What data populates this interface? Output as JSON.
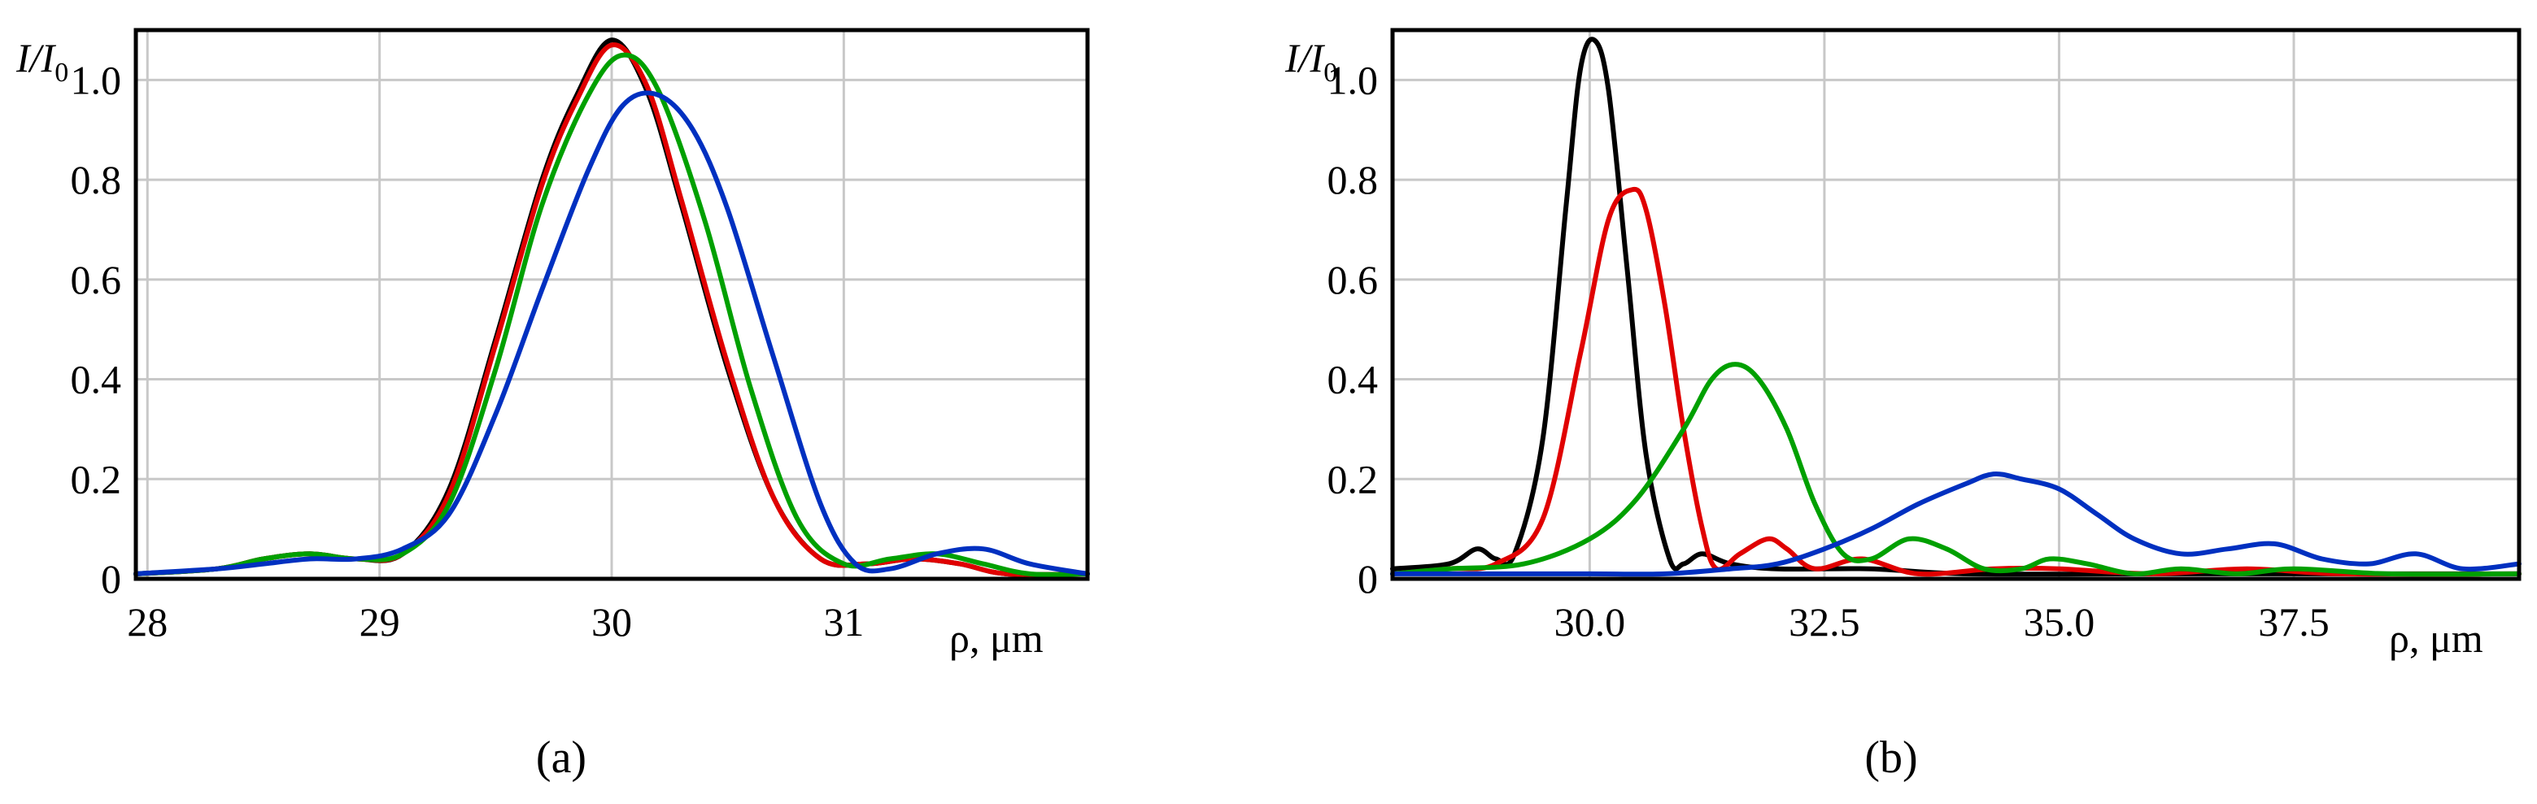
{
  "chart_data": [
    {
      "type": "line",
      "panel_label": "(a)",
      "ylabel_main": "I/I",
      "ylabel_sub": "0",
      "xlabel": "ρ, μm",
      "xlim": [
        27.95,
        32.05
      ],
      "ylim": [
        0,
        1.1
      ],
      "xticks": [
        28,
        29,
        30,
        31
      ],
      "xtick_labels": [
        "28",
        "29",
        "30",
        "31"
      ],
      "yticks": [
        0,
        0.2,
        0.4,
        0.6,
        0.8,
        1.0
      ],
      "ytick_labels": [
        "0",
        "0.2",
        "0.4",
        "0.6",
        "0.8",
        "1.0"
      ],
      "grid": true,
      "series": [
        {
          "name": "black",
          "color": "#000000",
          "x": [
            27.95,
            28.3,
            28.5,
            28.7,
            28.9,
            29.1,
            29.3,
            29.5,
            29.7,
            29.85,
            30.0,
            30.15,
            30.3,
            30.5,
            30.7,
            30.9,
            31.1,
            31.3,
            31.5,
            31.7,
            32.05
          ],
          "y": [
            0.01,
            0.02,
            0.04,
            0.05,
            0.04,
            0.05,
            0.18,
            0.48,
            0.8,
            0.97,
            1.08,
            0.98,
            0.75,
            0.42,
            0.16,
            0.04,
            0.03,
            0.04,
            0.03,
            0.01,
            0.01
          ]
        },
        {
          "name": "red",
          "color": "#e00000",
          "x": [
            27.95,
            28.3,
            28.5,
            28.7,
            28.9,
            29.1,
            29.3,
            29.5,
            29.7,
            29.85,
            30.0,
            30.15,
            30.3,
            30.5,
            30.7,
            30.9,
            31.1,
            31.3,
            31.5,
            31.7,
            32.05
          ],
          "y": [
            0.01,
            0.02,
            0.04,
            0.05,
            0.04,
            0.05,
            0.17,
            0.47,
            0.79,
            0.96,
            1.07,
            0.99,
            0.76,
            0.43,
            0.16,
            0.04,
            0.03,
            0.04,
            0.03,
            0.01,
            0.01
          ]
        },
        {
          "name": "green",
          "color": "#00a000",
          "x": [
            27.95,
            28.3,
            28.5,
            28.7,
            28.9,
            29.1,
            29.3,
            29.5,
            29.7,
            29.9,
            30.05,
            30.2,
            30.4,
            30.6,
            30.8,
            31.0,
            31.2,
            31.4,
            31.6,
            31.8,
            32.05
          ],
          "y": [
            0.01,
            0.02,
            0.04,
            0.05,
            0.04,
            0.05,
            0.15,
            0.42,
            0.75,
            0.97,
            1.05,
            0.98,
            0.72,
            0.38,
            0.12,
            0.03,
            0.04,
            0.05,
            0.03,
            0.01,
            0.01
          ]
        },
        {
          "name": "blue",
          "color": "#0030c0",
          "x": [
            27.95,
            28.3,
            28.5,
            28.7,
            28.9,
            29.1,
            29.3,
            29.5,
            29.7,
            29.9,
            30.05,
            30.2,
            30.35,
            30.5,
            30.7,
            30.9,
            31.05,
            31.2,
            31.4,
            31.6,
            31.8,
            32.05
          ],
          "y": [
            0.01,
            0.02,
            0.03,
            0.04,
            0.04,
            0.06,
            0.13,
            0.33,
            0.58,
            0.82,
            0.95,
            0.97,
            0.9,
            0.74,
            0.44,
            0.15,
            0.03,
            0.02,
            0.05,
            0.06,
            0.03,
            0.01
          ]
        }
      ]
    },
    {
      "type": "line",
      "panel_label": "(b)",
      "ylabel_main": "I/I",
      "ylabel_sub": "0",
      "xlabel": "ρ, μm",
      "xlim": [
        27.9,
        39.9
      ],
      "ylim": [
        0,
        1.1
      ],
      "xticks": [
        30.0,
        32.5,
        35.0,
        37.5
      ],
      "xtick_labels": [
        "30.0",
        "32.5",
        "35.0",
        "37.5"
      ],
      "yticks": [
        0,
        0.2,
        0.4,
        0.6,
        0.8,
        1.0
      ],
      "ytick_labels": [
        "0",
        "0.2",
        "0.4",
        "0.6",
        "0.8",
        "1.0"
      ],
      "grid": true,
      "series": [
        {
          "name": "black",
          "color": "#000000",
          "x": [
            27.9,
            28.5,
            28.8,
            29.0,
            29.2,
            29.5,
            29.75,
            29.9,
            30.05,
            30.2,
            30.4,
            30.6,
            30.85,
            31.0,
            31.2,
            31.5,
            32.0,
            33.0,
            34.0,
            36.0,
            38.0,
            39.9
          ],
          "y": [
            0.02,
            0.03,
            0.06,
            0.04,
            0.05,
            0.28,
            0.75,
            1.02,
            1.08,
            0.98,
            0.62,
            0.25,
            0.04,
            0.03,
            0.05,
            0.03,
            0.02,
            0.02,
            0.01,
            0.01,
            0.01,
            0.01
          ]
        },
        {
          "name": "red",
          "color": "#e00000",
          "x": [
            27.9,
            28.5,
            29.0,
            29.5,
            29.9,
            30.2,
            30.45,
            30.6,
            30.8,
            31.0,
            31.2,
            31.35,
            31.6,
            31.9,
            32.1,
            32.4,
            32.9,
            33.5,
            34.3,
            35.0,
            36.0,
            37.0,
            38.0,
            39.9
          ],
          "y": [
            0.01,
            0.02,
            0.03,
            0.12,
            0.45,
            0.72,
            0.78,
            0.74,
            0.55,
            0.3,
            0.1,
            0.02,
            0.05,
            0.08,
            0.06,
            0.02,
            0.04,
            0.01,
            0.02,
            0.02,
            0.01,
            0.02,
            0.01,
            0.01
          ]
        },
        {
          "name": "green",
          "color": "#00a000",
          "x": [
            27.9,
            28.5,
            29.3,
            30.0,
            30.5,
            31.0,
            31.3,
            31.55,
            31.8,
            32.1,
            32.4,
            32.7,
            33.0,
            33.4,
            33.8,
            34.2,
            34.6,
            34.9,
            35.3,
            35.8,
            36.3,
            36.9,
            37.5,
            38.5,
            39.9
          ],
          "y": [
            0.01,
            0.02,
            0.03,
            0.08,
            0.16,
            0.3,
            0.4,
            0.43,
            0.4,
            0.3,
            0.15,
            0.05,
            0.04,
            0.08,
            0.06,
            0.02,
            0.02,
            0.04,
            0.03,
            0.01,
            0.02,
            0.01,
            0.02,
            0.01,
            0.01
          ]
        },
        {
          "name": "blue",
          "color": "#0030c0",
          "x": [
            27.9,
            29.0,
            30.0,
            30.8,
            31.5,
            32.0,
            32.5,
            33.0,
            33.5,
            34.0,
            34.3,
            34.6,
            35.0,
            35.4,
            35.8,
            36.3,
            36.8,
            37.3,
            37.8,
            38.3,
            38.8,
            39.3,
            39.9
          ],
          "y": [
            0.01,
            0.01,
            0.01,
            0.01,
            0.02,
            0.03,
            0.06,
            0.1,
            0.15,
            0.19,
            0.21,
            0.2,
            0.18,
            0.13,
            0.08,
            0.05,
            0.06,
            0.07,
            0.04,
            0.03,
            0.05,
            0.02,
            0.03
          ]
        }
      ]
    }
  ]
}
